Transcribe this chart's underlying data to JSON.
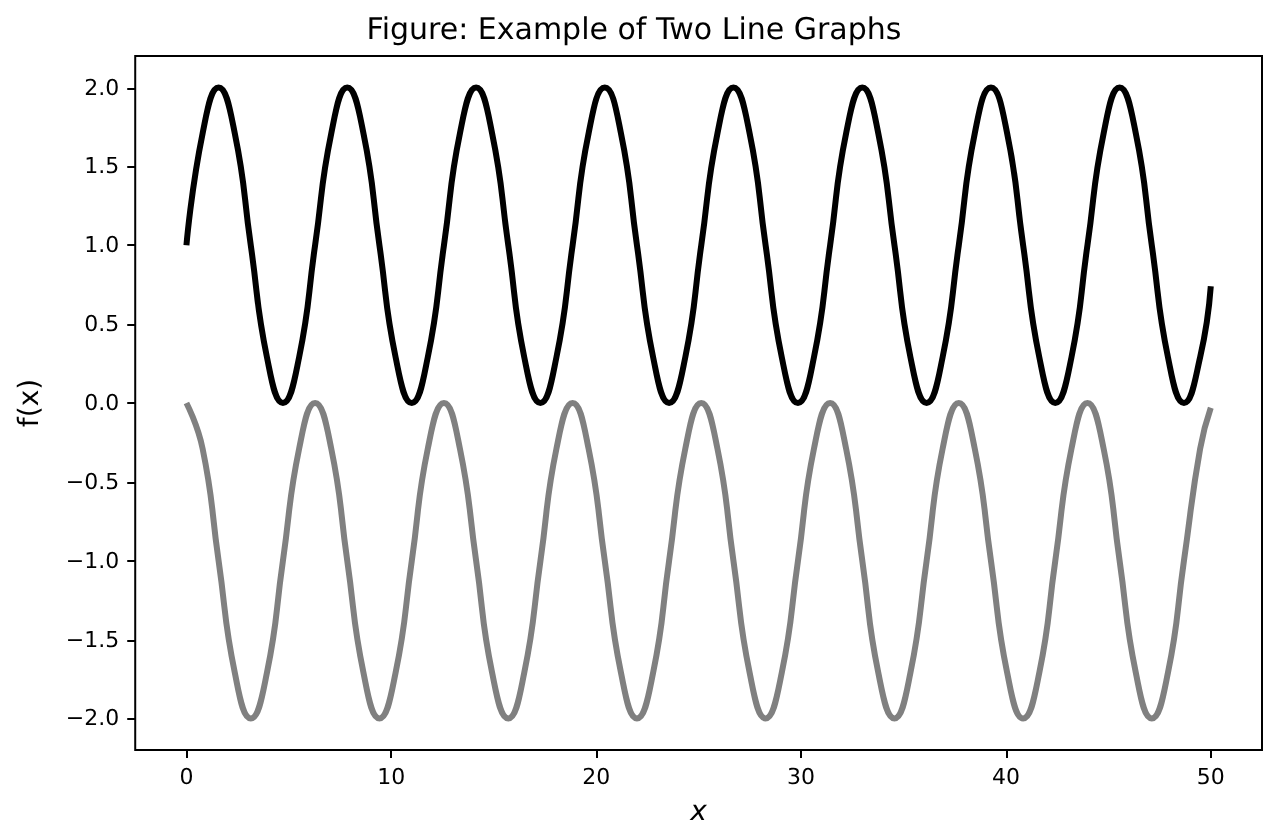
{
  "chart_data": {
    "type": "line",
    "title": "Figure: Example of Two Line Graphs",
    "xlabel": "x",
    "ylabel": "f(x)",
    "x": [
      0,
      0.79,
      1.57,
      2.36,
      3.14,
      3.93,
      4.71,
      5.5,
      6.28,
      7.07,
      7.85,
      8.64,
      9.42,
      10.21,
      11.0,
      11.78,
      12.57,
      13.35,
      14.14,
      14.92,
      15.71,
      16.49,
      17.28,
      18.06,
      18.85,
      19.63,
      20.42,
      21.21,
      21.99,
      22.78,
      23.56,
      24.35,
      25.13,
      25.92,
      26.7,
      27.49,
      28.27,
      29.06,
      29.85,
      30.63,
      31.42,
      32.2,
      32.99,
      33.77,
      34.56,
      35.34,
      36.13,
      36.91,
      37.7,
      38.48,
      39.27,
      40.06,
      40.84,
      41.63,
      42.41,
      43.2,
      43.98,
      44.77,
      45.55,
      46.34,
      47.12,
      47.91,
      48.69,
      49.48,
      50
    ],
    "series": [
      {
        "color": "#000000",
        "values": [
          1,
          1.71,
          2,
          1.71,
          1,
          0.29,
          0,
          0.29,
          1,
          1.71,
          2,
          1.71,
          1,
          0.29,
          0,
          0.29,
          1,
          1.71,
          2,
          1.71,
          1,
          0.29,
          0,
          0.29,
          1,
          1.71,
          2,
          1.71,
          1,
          0.29,
          0,
          0.29,
          1,
          1.71,
          2,
          1.71,
          1,
          0.29,
          0,
          0.29,
          1,
          1.71,
          2,
          1.71,
          1,
          0.29,
          0,
          0.29,
          1,
          1.71,
          2,
          1.71,
          1,
          0.29,
          0,
          0.29,
          1,
          1.71,
          2,
          1.71,
          1,
          0.29,
          0,
          0.29,
          0.74
        ]
      },
      {
        "color": "#808080",
        "values": [
          0,
          -0.29,
          -1,
          -1.71,
          -2,
          -1.71,
          -1,
          -0.29,
          0,
          -0.29,
          -1,
          -1.71,
          -2,
          -1.71,
          -1,
          -0.29,
          0,
          -0.29,
          -1,
          -1.71,
          -2,
          -1.71,
          -1,
          -0.29,
          0,
          -0.29,
          -1,
          -1.71,
          -2,
          -1.71,
          -1,
          -0.29,
          0,
          -0.29,
          -1,
          -1.71,
          -2,
          -1.71,
          -1,
          -0.29,
          0,
          -0.29,
          -1,
          -1.71,
          -2,
          -1.71,
          -1,
          -0.29,
          0,
          -0.29,
          -1,
          -1.71,
          -2,
          -1.71,
          -1,
          -0.29,
          0,
          -0.29,
          -1,
          -1.71,
          -2,
          -1.71,
          -1,
          -0.29,
          -0.03
        ]
      }
    ],
    "xlim": [
      -2.5,
      52.5
    ],
    "xticks": [
      0,
      10,
      20,
      30,
      40,
      50
    ],
    "ylim": [
      -2.2,
      2.2
    ],
    "yticks": [
      {
        "value": -2,
        "label": "−2.0"
      },
      {
        "value": -1.5,
        "label": "−1.5"
      },
      {
        "value": -1,
        "label": "−1.0"
      },
      {
        "value": -0.5,
        "label": "−0.5"
      },
      {
        "value": 0,
        "label": "0.0"
      },
      {
        "value": 0.5,
        "label": "0.5"
      },
      {
        "value": 1,
        "label": "1.0"
      },
      {
        "value": 1.5,
        "label": "1.5"
      },
      {
        "value": 2,
        "label": "2.0"
      }
    ],
    "grid": false,
    "marker": "none",
    "line_style": "solid"
  }
}
